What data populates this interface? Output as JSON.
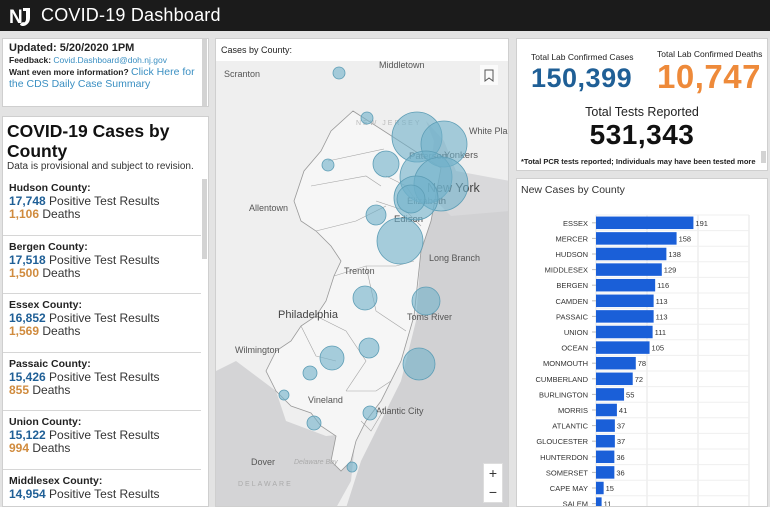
{
  "header": {
    "logo": "NJ",
    "title": "COVID-19 Dashboard"
  },
  "info": {
    "updated": "Updated: 5/20/2020 1PM",
    "feedback_label": "Feedback:",
    "feedback_email": "Covid.Dashboard@doh.nj.gov",
    "more_info_label": "Want even more information?",
    "more_info_link_1": "Click Here for",
    "more_info_link_2": "the CDS Daily Case Summary"
  },
  "counties": {
    "title": "COVID-19 Cases by County",
    "subtitle": "Data is provisional and subject to revision.",
    "positive_suffix": " Positive Test Results",
    "deaths_suffix": " Deaths",
    "items": [
      {
        "name": "Hudson County:",
        "positive": "17,748",
        "deaths": "1,106"
      },
      {
        "name": "Bergen County:",
        "positive": "17,518",
        "deaths": "1,500"
      },
      {
        "name": "Essex County:",
        "positive": "16,852",
        "deaths": "1,569"
      },
      {
        "name": "Passaic County:",
        "positive": "15,426",
        "deaths": "855"
      },
      {
        "name": "Union County:",
        "positive": "15,122",
        "deaths": "994"
      },
      {
        "name": "Middlesex County:",
        "positive": "14,954",
        "deaths": ""
      }
    ]
  },
  "map": {
    "title": "Cases by County:",
    "labels": [
      "Scranton",
      "Middletown",
      "Newburgh",
      "White Plains",
      "Paterson",
      "Yonkers",
      "New York",
      "Elizabeth",
      "Edison",
      "Allentown",
      "Long Branch",
      "Trenton",
      "Philadelphia",
      "Toms River",
      "Wilmington",
      "Vineland",
      "Atlantic City",
      "Dover",
      "DELAWARE",
      "NEW JERSEY",
      "Delaware Bay"
    ],
    "zoom_in": "+",
    "zoom_out": "−"
  },
  "totals": {
    "cases_label": "Total Lab Confirmed Cases",
    "cases": "150,399",
    "deaths_label": "Total Lab Confirmed Deaths",
    "deaths": "10,747",
    "tests_label": "Total Tests Reported",
    "tests": "531,343",
    "note": "*Total PCR tests reported; Individuals may have been tested more"
  },
  "colors": {
    "cases": "#1f5f96",
    "deaths": "#ee8a3a",
    "bar": "#1a5fd8",
    "bubble": "#7fb8cf"
  },
  "chart_data": {
    "type": "bar",
    "orientation": "horizontal",
    "title": "New Cases by County",
    "categories": [
      "ESSEX",
      "MERCER",
      "HUDSON",
      "MIDDLESEX",
      "BERGEN",
      "CAMDEN",
      "PASSAIC",
      "UNION",
      "OCEAN",
      "MONMOUTH",
      "CUMBERLAND",
      "BURLINGTON",
      "MORRIS",
      "ATLANTIC",
      "GLOUCESTER",
      "HUNTERDON",
      "SOMERSET",
      "CAPE MAY",
      "SALEM"
    ],
    "values": [
      191,
      158,
      138,
      129,
      116,
      113,
      113,
      111,
      105,
      78,
      72,
      55,
      41,
      37,
      37,
      36,
      36,
      15,
      11
    ],
    "xlim": [
      0,
      300
    ],
    "grid": true,
    "xlabel": "",
    "ylabel": ""
  }
}
